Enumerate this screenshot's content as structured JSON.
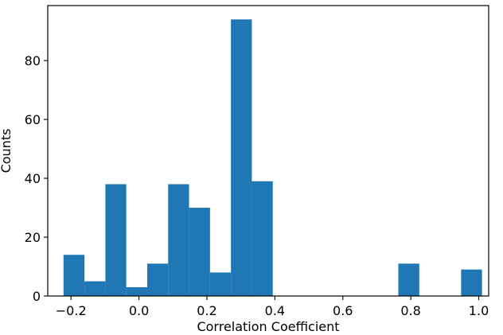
{
  "chart_data": {
    "type": "bar",
    "title": "",
    "xlabel": "Correlation Coefficient",
    "ylabel": "Counts",
    "bar_color": "#1f77b4",
    "xlim": [
      -0.2684,
      1.0292
    ],
    "ylim": [
      0,
      98.7
    ],
    "grid": false,
    "bins": [
      {
        "x0": -0.222,
        "x1": -0.1604,
        "count": 14
      },
      {
        "x0": -0.1604,
        "x1": -0.0988,
        "count": 5
      },
      {
        "x0": -0.0988,
        "x1": -0.0373,
        "count": 38
      },
      {
        "x0": -0.0373,
        "x1": 0.0243,
        "count": 3
      },
      {
        "x0": 0.0243,
        "x1": 0.0859,
        "count": 11
      },
      {
        "x0": 0.0859,
        "x1": 0.1475,
        "count": 38
      },
      {
        "x0": 0.1475,
        "x1": 0.2091,
        "count": 30
      },
      {
        "x0": 0.2091,
        "x1": 0.2706,
        "count": 8
      },
      {
        "x0": 0.2706,
        "x1": 0.3322,
        "count": 94
      },
      {
        "x0": 0.3322,
        "x1": 0.3938,
        "count": 39
      },
      {
        "x0": 0.3938,
        "x1": 0.4554,
        "count": 0
      },
      {
        "x0": 0.4554,
        "x1": 0.517,
        "count": 0
      },
      {
        "x0": 0.517,
        "x1": 0.5785,
        "count": 0
      },
      {
        "x0": 0.5785,
        "x1": 0.6401,
        "count": 0
      },
      {
        "x0": 0.6401,
        "x1": 0.7017,
        "count": 0
      },
      {
        "x0": 0.7017,
        "x1": 0.7633,
        "count": 0
      },
      {
        "x0": 0.7633,
        "x1": 0.8249,
        "count": 11
      },
      {
        "x0": 0.8249,
        "x1": 0.8864,
        "count": 0
      },
      {
        "x0": 0.8864,
        "x1": 0.948,
        "count": 0
      },
      {
        "x0": 0.948,
        "x1": 1.0096,
        "count": 9
      }
    ],
    "xticks": [
      {
        "value": -0.2,
        "label": "−0.2"
      },
      {
        "value": 0.0,
        "label": "0.0"
      },
      {
        "value": 0.2,
        "label": "0.2"
      },
      {
        "value": 0.4,
        "label": "0.4"
      },
      {
        "value": 0.6,
        "label": "0.6"
      },
      {
        "value": 0.8,
        "label": "0.8"
      },
      {
        "value": 1.0,
        "label": "1.0"
      }
    ],
    "yticks": [
      {
        "value": 0,
        "label": "0"
      },
      {
        "value": 20,
        "label": "20"
      },
      {
        "value": 40,
        "label": "40"
      },
      {
        "value": 60,
        "label": "60"
      },
      {
        "value": 80,
        "label": "80"
      }
    ]
  }
}
